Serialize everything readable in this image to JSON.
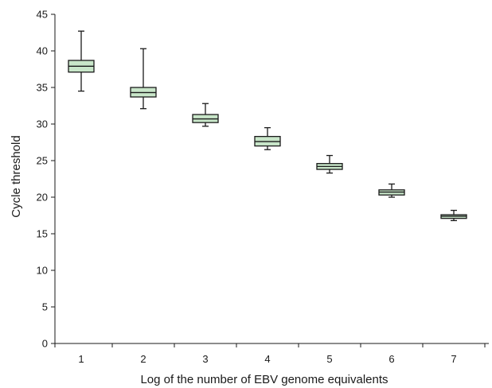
{
  "chart_data": {
    "type": "boxplot",
    "title": "",
    "xlabel": "Log of the number of EBV genome equivalents",
    "ylabel": "Cycle threshold",
    "ylim": [
      0,
      45
    ],
    "yticks": [
      0,
      5,
      10,
      15,
      20,
      25,
      30,
      35,
      40,
      45
    ],
    "categories": [
      "1",
      "2",
      "3",
      "4",
      "5",
      "6",
      "7"
    ],
    "grid": false,
    "legend": "none",
    "colors": {
      "box_fill": "#c8e6c9",
      "box_stroke": "#1a1a1a",
      "axis": "#1a1a1a"
    },
    "boxes": [
      {
        "x": "1",
        "min": 34.5,
        "q1": 37.1,
        "median": 37.9,
        "q3": 38.7,
        "max": 42.7
      },
      {
        "x": "2",
        "min": 32.1,
        "q1": 33.7,
        "median": 34.3,
        "q3": 35.0,
        "max": 40.3
      },
      {
        "x": "3",
        "min": 29.7,
        "q1": 30.2,
        "median": 30.7,
        "q3": 31.3,
        "max": 32.8
      },
      {
        "x": "4",
        "min": 26.5,
        "q1": 27.0,
        "median": 27.6,
        "q3": 28.3,
        "max": 29.5
      },
      {
        "x": "5",
        "min": 23.3,
        "q1": 23.8,
        "median": 24.2,
        "q3": 24.6,
        "max": 25.7
      },
      {
        "x": "6",
        "min": 20.0,
        "q1": 20.3,
        "median": 20.7,
        "q3": 21.0,
        "max": 21.8
      },
      {
        "x": "7",
        "min": 16.8,
        "q1": 17.1,
        "median": 17.4,
        "q3": 17.6,
        "max": 18.2
      }
    ]
  }
}
